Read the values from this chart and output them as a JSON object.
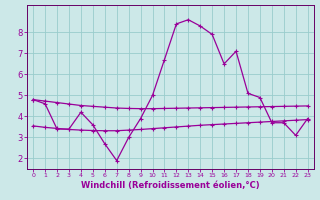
{
  "xlabel": "Windchill (Refroidissement éolien,°C)",
  "background_color": "#cce8e8",
  "line_color": "#990099",
  "grid_color": "#99cccc",
  "spine_color": "#660066",
  "xlim": [
    -0.5,
    23.5
  ],
  "ylim": [
    1.5,
    9.3
  ],
  "xticks": [
    0,
    1,
    2,
    3,
    4,
    5,
    6,
    7,
    8,
    9,
    10,
    11,
    12,
    13,
    14,
    15,
    16,
    17,
    18,
    19,
    20,
    21,
    22,
    23
  ],
  "yticks": [
    2,
    3,
    4,
    5,
    6,
    7,
    8
  ],
  "hours": [
    0,
    1,
    2,
    3,
    4,
    5,
    6,
    7,
    8,
    9,
    10,
    11,
    12,
    13,
    14,
    15,
    16,
    17,
    18,
    19,
    20,
    21,
    22,
    23
  ],
  "line1": [
    4.8,
    4.6,
    3.4,
    3.4,
    4.2,
    3.6,
    2.7,
    1.9,
    3.0,
    3.9,
    5.0,
    6.7,
    8.4,
    8.6,
    8.3,
    7.9,
    6.5,
    7.1,
    5.1,
    4.9,
    3.7,
    3.7,
    3.1,
    3.9
  ],
  "line2": [
    4.8,
    4.73,
    4.66,
    4.59,
    4.52,
    4.48,
    4.44,
    4.4,
    4.38,
    4.37,
    4.37,
    4.38,
    4.39,
    4.4,
    4.41,
    4.42,
    4.43,
    4.44,
    4.45,
    4.46,
    4.47,
    4.48,
    4.49,
    4.5
  ],
  "line3": [
    3.55,
    3.48,
    3.43,
    3.38,
    3.35,
    3.33,
    3.32,
    3.32,
    3.35,
    3.38,
    3.42,
    3.46,
    3.5,
    3.54,
    3.58,
    3.61,
    3.64,
    3.67,
    3.7,
    3.73,
    3.76,
    3.79,
    3.82,
    3.85
  ],
  "xlabel_fontsize": 6,
  "tick_fontsize": 5.5,
  "linewidth": 0.9,
  "markersize": 3
}
